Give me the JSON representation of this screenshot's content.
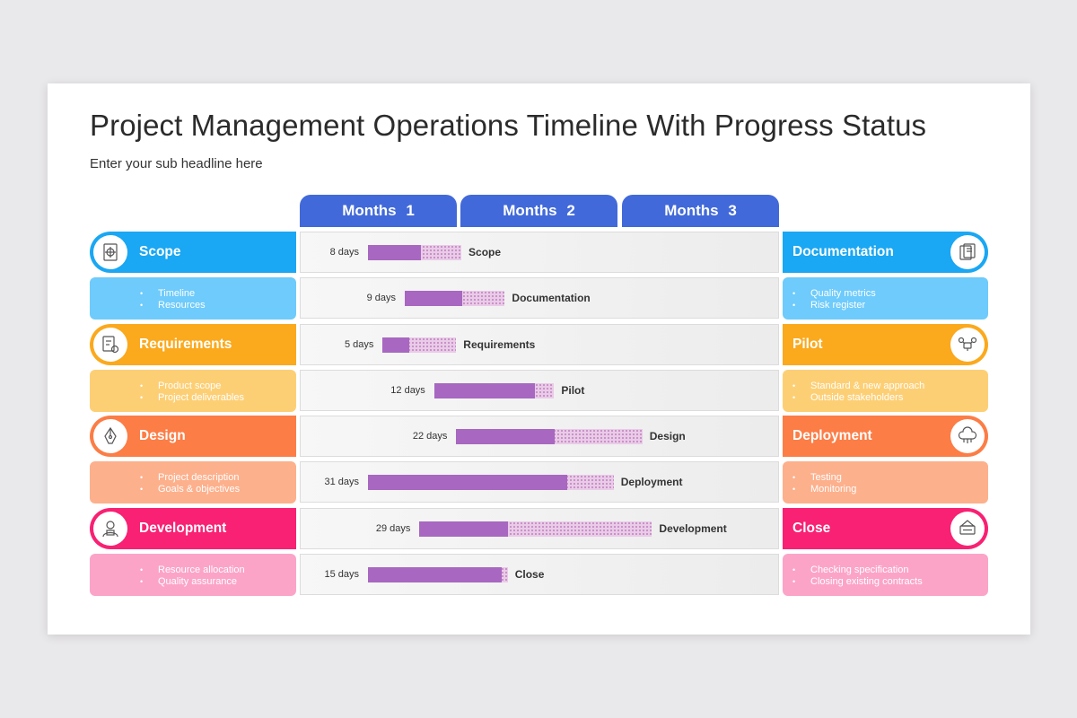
{
  "title": "Project Management Operations Timeline With Progress Status",
  "subtitle": "Enter your sub headline here",
  "months": [
    "Months  1",
    "Months  2",
    "Months  3"
  ],
  "colors": {
    "blue": "#1aa7f3",
    "blue_light": "#6ecbfb",
    "orange": "#fba91d",
    "orange_light": "#fdcf75",
    "coral": "#fc7d46",
    "coral_light": "#fdb08c",
    "pink": "#f82173",
    "pink_light": "#fba4c8",
    "header": "#4169d9",
    "bar_fill": "#a867c0"
  },
  "left_categories": [
    {
      "title": "Scope",
      "icon": "target-document-icon",
      "items": [
        "Timeline",
        "Resources"
      ],
      "color": "#1aa7f3",
      "light": "#6ecbfb",
      "ring": "#1aa7f3"
    },
    {
      "title": "Requirements",
      "icon": "checklist-gear-icon",
      "items": [
        "Product scope",
        "Project deliverables"
      ],
      "color": "#fba91d",
      "light": "#fdcf75",
      "ring": "#fba91d"
    },
    {
      "title": "Design",
      "icon": "pen-tool-icon",
      "items": [
        "Project description",
        "Goals & objectives"
      ],
      "color": "#fc7d46",
      "light": "#fdb08c",
      "ring": "#fc7d46"
    },
    {
      "title": "Development",
      "icon": "developer-icon",
      "items": [
        "Resource allocation",
        "Quality assurance"
      ],
      "color": "#f82173",
      "light": "#fba4c8",
      "ring": "#f82173"
    }
  ],
  "right_categories": [
    {
      "title": "Documentation",
      "icon": "documents-icon",
      "items": [
        "Quality metrics",
        "Risk register"
      ],
      "color": "#1aa7f3",
      "light": "#6ecbfb",
      "ring": "#1aa7f3"
    },
    {
      "title": "Pilot",
      "icon": "drone-icon",
      "items": [
        "Standard & new approach",
        "Outside stakeholders"
      ],
      "color": "#fba91d",
      "light": "#fdcf75",
      "ring": "#fba91d"
    },
    {
      "title": "Deployment",
      "icon": "cloud-network-icon",
      "items": [
        "Testing",
        "Monitoring"
      ],
      "color": "#fc7d46",
      "light": "#fdb08c",
      "ring": "#fc7d46"
    },
    {
      "title": "Close",
      "icon": "closed-sign-icon",
      "items": [
        "Checking specification",
        "Closing existing contracts"
      ],
      "color": "#f82173",
      "light": "#fba4c8",
      "ring": "#f82173"
    }
  ],
  "chart_data": {
    "type": "bar",
    "orientation": "gantt",
    "x_axis_ticks": [
      "Months  1",
      "Months  2",
      "Months  3"
    ],
    "x_unit": "days",
    "x_range_days": [
      0,
      90
    ],
    "tasks": [
      {
        "name": "Scope",
        "duration_label": "8 days",
        "duration_days": 8,
        "start_day": 5,
        "progress": 0.57
      },
      {
        "name": "Documentation",
        "duration_label": "9 days",
        "duration_days": 9,
        "start_day": 10,
        "progress": 0.57
      },
      {
        "name": "Requirements",
        "duration_label": "5 days",
        "duration_days": 5,
        "start_day": 7,
        "progress": 0.36
      },
      {
        "name": "Pilot",
        "duration_label": "12 days",
        "duration_days": 12,
        "start_day": 14,
        "progress": 0.84
      },
      {
        "name": "Design",
        "duration_label": "22 days",
        "duration_days": 22,
        "start_day": 17,
        "progress": 0.53
      },
      {
        "name": "Deployment",
        "duration_label": "31 days",
        "duration_days": 31,
        "start_day": 5,
        "progress": 0.81
      },
      {
        "name": "Development",
        "duration_label": "29 days",
        "duration_days": 29,
        "start_day": 12,
        "progress": 0.38
      },
      {
        "name": "Close",
        "duration_label": "15 days",
        "duration_days": 15,
        "start_day": 5,
        "progress": 0.96
      }
    ]
  }
}
